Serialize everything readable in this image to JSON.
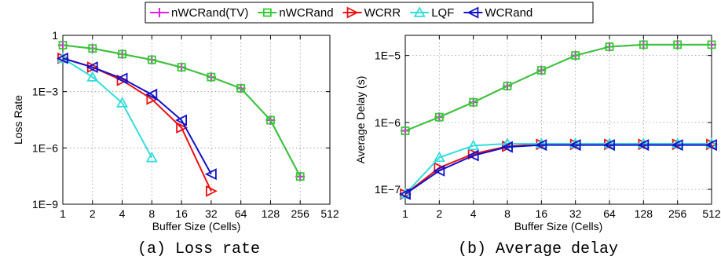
{
  "legend": [
    {
      "name": "nWCRand(TV)",
      "color": "#e020e0",
      "marker": "plus"
    },
    {
      "name": "nWCRand",
      "color": "#33cc33",
      "marker": "square"
    },
    {
      "name": "WCRR",
      "color": "#ee1111",
      "marker": "triangle-right"
    },
    {
      "name": "LQF",
      "color": "#33dddd",
      "marker": "triangle-up"
    },
    {
      "name": "WCRand",
      "color": "#1111cc",
      "marker": "triangle-left"
    }
  ],
  "chart_data": [
    {
      "type": "line",
      "caption": "(a) Loss rate",
      "xlabel": "Buffer Size (Cells)",
      "ylabel": "Loss Rate",
      "xscale": "log2",
      "yscale": "log10",
      "xlim": [
        1,
        512
      ],
      "ylim": [
        1e-09,
        1
      ],
      "xticks": [
        "1",
        "2",
        "4",
        "8",
        "16",
        "32",
        "64",
        "128",
        "256",
        "512"
      ],
      "yticks": [
        {
          "label": "1",
          "value": 1
        },
        {
          "label": "1E−3",
          "value": 0.001
        },
        {
          "label": "1E−6",
          "value": 1e-06
        },
        {
          "label": "1E−9",
          "value": 1e-09
        }
      ],
      "grid": true,
      "series": [
        {
          "name": "nWCRand(TV)",
          "x": [
            1,
            2,
            4,
            8,
            16,
            32,
            64,
            128,
            256
          ],
          "y": [
            0.3,
            0.2,
            0.1,
            0.05,
            0.02,
            0.006,
            0.0015,
            3e-05,
            3e-08
          ]
        },
        {
          "name": "nWCRand",
          "x": [
            1,
            2,
            4,
            8,
            16,
            32,
            64,
            128,
            256
          ],
          "y": [
            0.3,
            0.2,
            0.1,
            0.05,
            0.02,
            0.006,
            0.0015,
            3e-05,
            3e-08
          ]
        },
        {
          "name": "WCRR",
          "x": [
            1,
            2,
            4,
            8,
            16,
            32
          ],
          "y": [
            0.06,
            0.02,
            0.004,
            0.0004,
            1.2e-05,
            5e-09
          ]
        },
        {
          "name": "LQF",
          "x": [
            1,
            2,
            4,
            8
          ],
          "y": [
            0.06,
            0.006,
            0.00025,
            3e-07
          ]
        },
        {
          "name": "WCRand",
          "x": [
            1,
            2,
            4,
            8,
            16,
            32
          ],
          "y": [
            0.06,
            0.02,
            0.005,
            0.0007,
            3e-05,
            4e-08
          ]
        }
      ]
    },
    {
      "type": "line",
      "caption": "(b) Average delay",
      "xlabel": "Buffer Size (Cells)",
      "ylabel": "Average Delay (s)",
      "xscale": "log2",
      "yscale": "log10",
      "xlim": [
        1,
        512
      ],
      "ylim": [
        6e-08,
        2e-05
      ],
      "xticks": [
        "1",
        "2",
        "4",
        "8",
        "16",
        "32",
        "64",
        "128",
        "256",
        "512"
      ],
      "yticks": [
        {
          "label": "1E−5",
          "value": 1e-05
        },
        {
          "label": "1E−6",
          "value": 1e-06
        },
        {
          "label": "1E−7",
          "value": 1e-07
        }
      ],
      "grid": true,
      "series": [
        {
          "name": "nWCRand(TV)",
          "x": [
            1,
            2,
            4,
            8,
            16,
            32,
            64,
            128,
            256,
            512
          ],
          "y": [
            7.5e-07,
            1.2e-06,
            2e-06,
            3.5e-06,
            6e-06,
            1e-05,
            1.35e-05,
            1.45e-05,
            1.45e-05,
            1.45e-05
          ]
        },
        {
          "name": "nWCRand",
          "x": [
            1,
            2,
            4,
            8,
            16,
            32,
            64,
            128,
            256,
            512
          ],
          "y": [
            7.5e-07,
            1.2e-06,
            2e-06,
            3.5e-06,
            6e-06,
            1e-05,
            1.35e-05,
            1.45e-05,
            1.45e-05,
            1.45e-05
          ]
        },
        {
          "name": "WCRR",
          "x": [
            1,
            2,
            4,
            8,
            16,
            32,
            64,
            128,
            256,
            512
          ],
          "y": [
            8.5e-08,
            2.1e-07,
            3.4e-07,
            4.4e-07,
            4.7e-07,
            4.7e-07,
            4.7e-07,
            4.7e-07,
            4.7e-07,
            4.7e-07
          ]
        },
        {
          "name": "LQF",
          "x": [
            1,
            2,
            4,
            8,
            16,
            32,
            64,
            128,
            256,
            512
          ],
          "y": [
            8.5e-08,
            3e-07,
            4.5e-07,
            4.8e-07,
            4.8e-07,
            4.8e-07,
            4.8e-07,
            4.8e-07,
            4.8e-07,
            4.8e-07
          ]
        },
        {
          "name": "WCRand",
          "x": [
            1,
            2,
            4,
            8,
            16,
            32,
            64,
            128,
            256,
            512
          ],
          "y": [
            8.5e-08,
            1.9e-07,
            3.2e-07,
            4.3e-07,
            4.6e-07,
            4.6e-07,
            4.6e-07,
            4.6e-07,
            4.6e-07,
            4.6e-07
          ]
        }
      ]
    }
  ]
}
